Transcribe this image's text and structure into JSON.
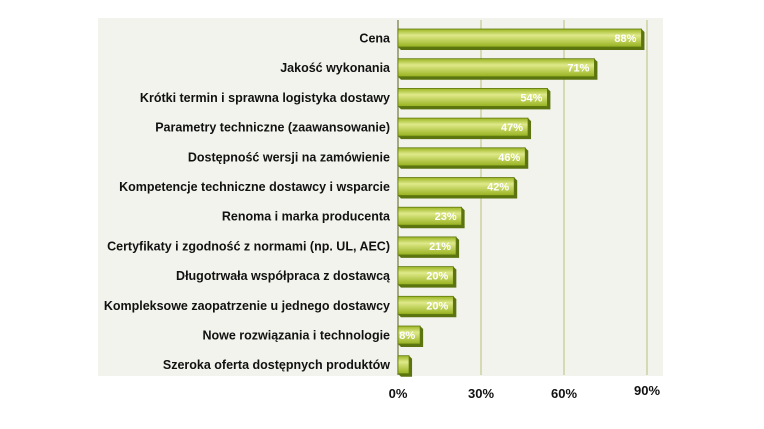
{
  "chart_data": {
    "type": "bar",
    "orientation": "horizontal",
    "categories": [
      "Cena",
      "Jakość wykonania",
      "Krótki termin i sprawna logistyka dostawy",
      "Parametry techniczne (zaawansowanie)",
      "Dostępność wersji na zamówienie",
      "Kompetencje techniczne dostawcy i wsparcie",
      "Renoma i marka producenta",
      "Certyfikaty i zgodność z normami (np. UL, AEC)",
      "Długotrwała współpraca z dostawcą",
      "Kompleksowe zaopatrzenie u jednego dostawcy",
      "Nowe rozwiązania i technologie",
      "Szeroka oferta dostępnych produktów"
    ],
    "values": [
      88,
      71,
      54,
      47,
      46,
      42,
      23,
      21,
      20,
      20,
      8,
      4
    ],
    "value_labels": [
      "88%",
      "71%",
      "54%",
      "47%",
      "46%",
      "42%",
      "23%",
      "21%",
      "20%",
      "20%",
      "8%",
      ""
    ],
    "xlim": [
      0,
      90
    ],
    "x_ticks": [
      0,
      30,
      60,
      90
    ],
    "x_tick_labels": [
      "0%",
      "30%",
      "60%",
      "90%"
    ],
    "grid": true,
    "colors": {
      "bar_light": "#dfe98a",
      "bar_dark": "#8aa51e",
      "bar_edge": "#5f7a10",
      "plot_background": "#f3f3ed",
      "grid": "#b9c27a"
    }
  }
}
